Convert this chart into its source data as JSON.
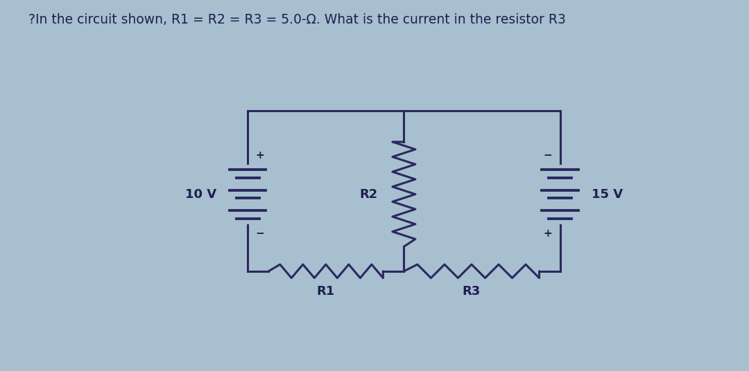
{
  "title": "?In the circuit shown, R1 = R2 = R3 = 5.0-Ω. What is the current in the resistor R3",
  "bg_color": "#a8bfcf",
  "circuit_bg": "#ddd5be",
  "line_color": "#2a2860",
  "text_color": "#1e1e50",
  "title_fontsize": 13.5,
  "label_fontsize": 13,
  "annot_fontsize": 11,
  "battery1_label": "10 V",
  "battery2_label": "15 V",
  "r1_label": "R1",
  "r2_label": "R2",
  "r3_label": "R3",
  "fig_w": 10.8,
  "fig_h": 5.36,
  "dpi": 100
}
